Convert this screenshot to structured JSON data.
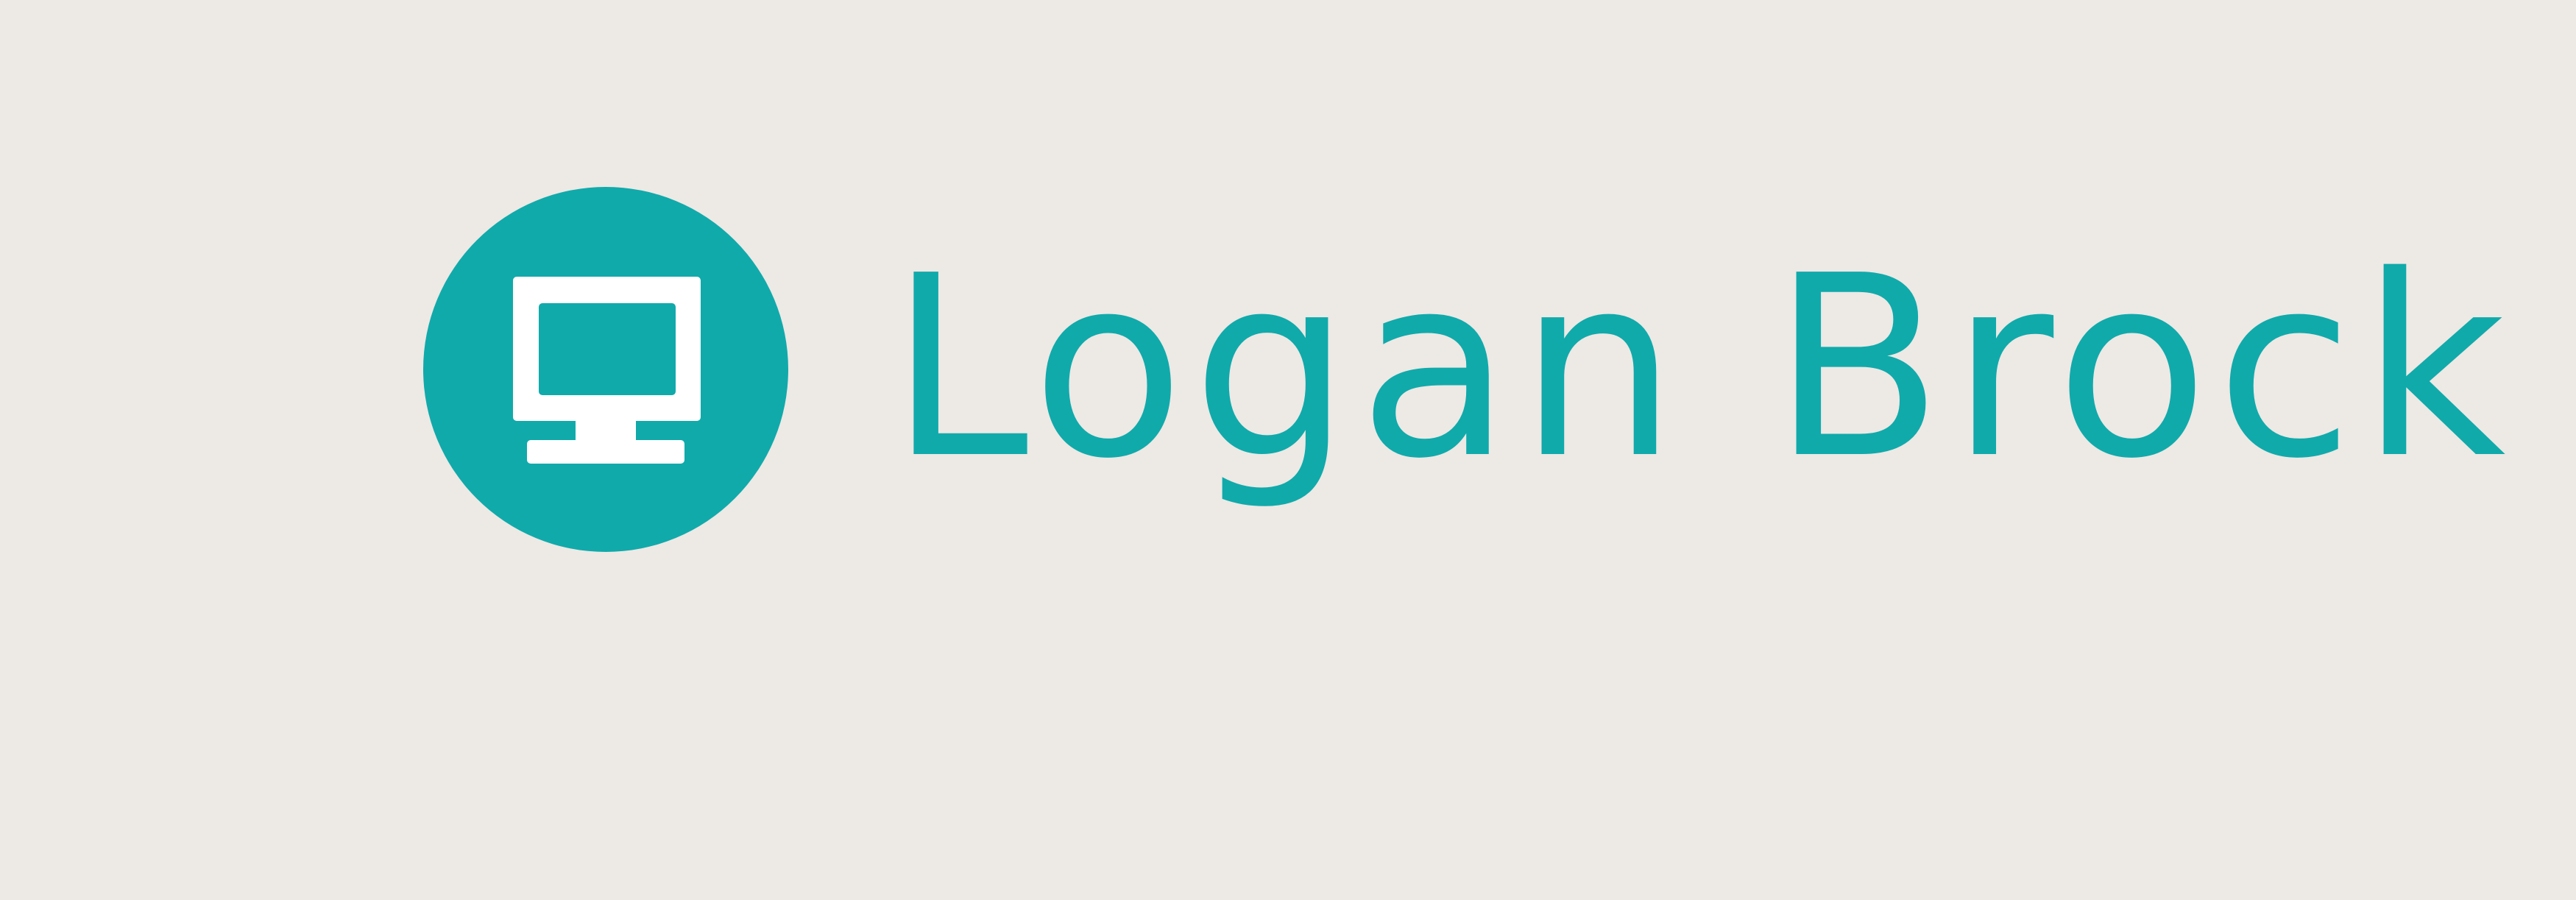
{
  "brand": {
    "name": "Logan Brock",
    "icon": "computer-monitor-icon"
  },
  "colors": {
    "background": "#ede9e5",
    "accent": "#10aaab",
    "icon_foreground": "#ffffff"
  }
}
